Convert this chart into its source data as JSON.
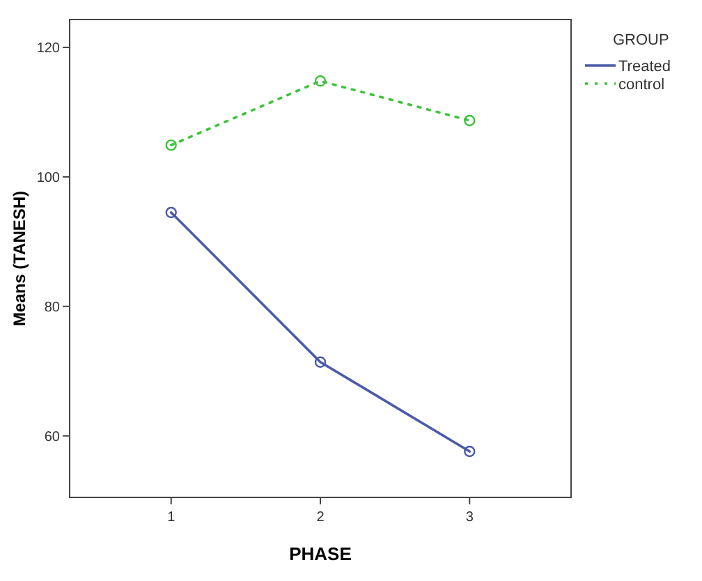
{
  "chart_data": {
    "type": "line",
    "xlabel": "PHASE",
    "ylabel": "Means (TANESH)",
    "legend_title": "GROUP",
    "x": [
      1,
      2,
      3
    ],
    "xlim": [
      0.32,
      3.68
    ],
    "xticks": [
      1,
      2,
      3
    ],
    "ylim": [
      50.5,
      124.3
    ],
    "yticks": [
      60,
      80,
      100,
      120
    ],
    "grid": false,
    "legend": "top right",
    "marker": "circle",
    "series": [
      {
        "name": "Treated",
        "color": "#4b5aa8",
        "values": [
          94.5,
          71.4,
          57.6
        ],
        "line_style": "solid"
      },
      {
        "name": "control",
        "color": "#3cc43c",
        "values": [
          104.9,
          114.8,
          108.7
        ],
        "line_style": "dotted"
      }
    ]
  }
}
